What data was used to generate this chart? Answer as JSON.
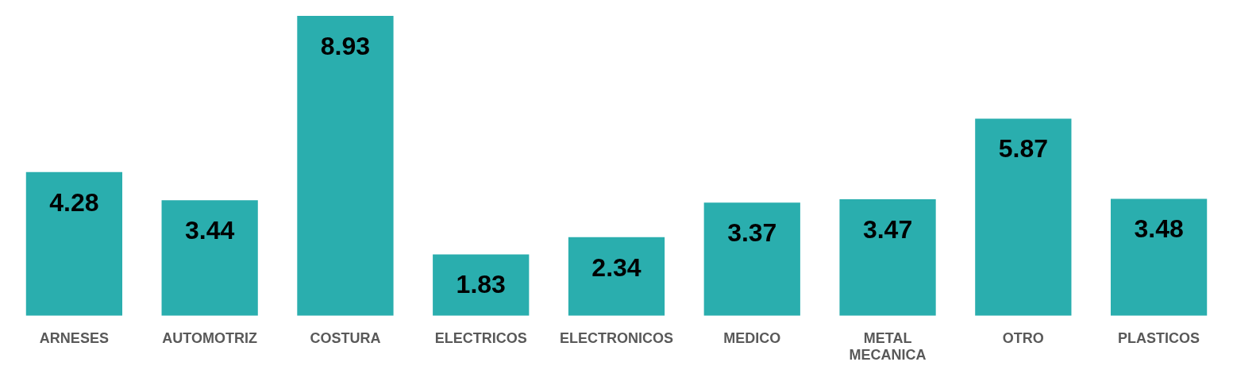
{
  "chart_data": {
    "type": "bar",
    "categories": [
      "ARNESES",
      "AUTOMOTRIZ",
      "COSTURA",
      "ELECTRICOS",
      "ELECTRONICOS",
      "MEDICO",
      "METAL MECANICA",
      "OTRO",
      "PLASTICOS"
    ],
    "values": [
      4.28,
      3.44,
      8.93,
      1.83,
      2.34,
      3.37,
      3.47,
      5.87,
      3.48
    ],
    "color": "#2aaeae",
    "data_labels": true,
    "grid": false,
    "legend": false
  }
}
